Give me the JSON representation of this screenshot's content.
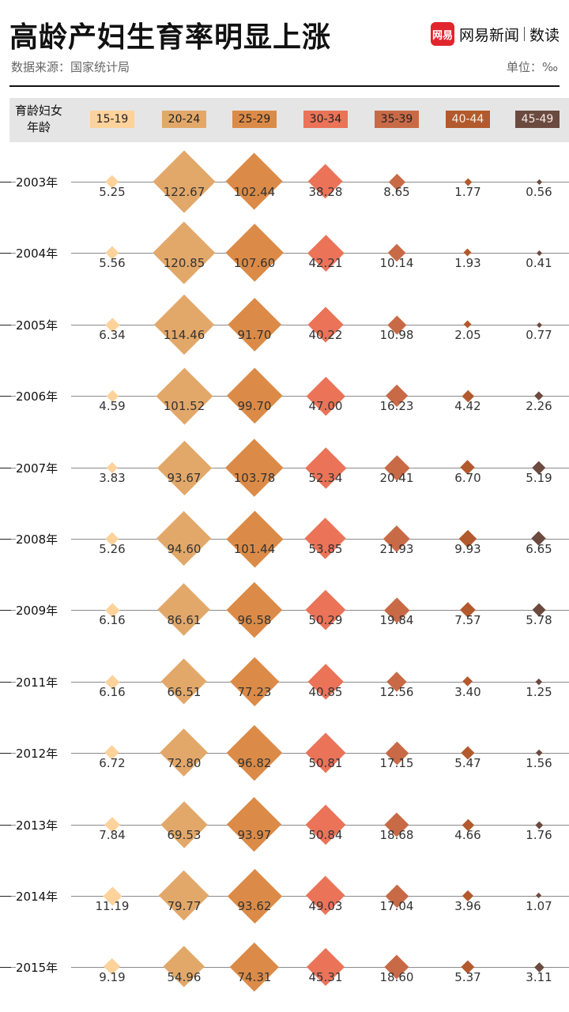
{
  "header": {
    "title": "高龄产妇生育率明显上涨",
    "source": "数据来源：国家统计局",
    "unit": "单位：‰",
    "brand_logo": "网易",
    "brand_name": "网易新闻",
    "brand_sub": "数读"
  },
  "colors": {
    "background": "#ffffff",
    "header_band": "#e5e5e5",
    "brand_red": "#e0252e"
  },
  "chart_data": {
    "type": "scatter",
    "title": "高龄产妇生育率明显上涨",
    "category_header": "育龄妇女年龄",
    "unit": "‰",
    "categories": [
      "15-19",
      "20-24",
      "25-29",
      "30-34",
      "35-39",
      "40-44",
      "45-49"
    ],
    "category_colors": [
      "#fdd29b",
      "#e2a86a",
      "#db8b47",
      "#ea7358",
      "#c96a47",
      "#b25a2d",
      "#6b4a40"
    ],
    "years": [
      "2003年",
      "2004年",
      "2005年",
      "2006年",
      "2007年",
      "2008年",
      "2009年",
      "2011年",
      "2012年",
      "2013年",
      "2014年",
      "2015年"
    ],
    "rows": [
      [
        "5.25",
        "122.67",
        "102.44",
        "38.28",
        "8.65",
        "1.77",
        "0.56"
      ],
      [
        "5.56",
        "120.85",
        "107.60",
        "42.21",
        "10.14",
        "1.93",
        "0.41"
      ],
      [
        "6.34",
        "114.46",
        "91.70",
        "40.22",
        "10.98",
        "2.05",
        "0.77"
      ],
      [
        "4.59",
        "101.52",
        "99.70",
        "47.00",
        "16.23",
        "4.42",
        "2.26"
      ],
      [
        "3.83",
        "93.67",
        "103.78",
        "52.34",
        "20.41",
        "6.70",
        "5.19"
      ],
      [
        "5.26",
        "94.60",
        "101.44",
        "53.85",
        "21.93",
        "9.93",
        "6.65"
      ],
      [
        "6.16",
        "86.61",
        "96.58",
        "50.29",
        "19.84",
        "7.57",
        "5.78"
      ],
      [
        "6.16",
        "66.51",
        "77.23",
        "40.85",
        "12.56",
        "3.40",
        "1.25"
      ],
      [
        "6.72",
        "72.80",
        "96.82",
        "50.81",
        "17.15",
        "5.47",
        "1.56"
      ],
      [
        "7.84",
        "69.53",
        "93.97",
        "50.84",
        "18.68",
        "4.66",
        "1.76"
      ],
      [
        "11.19",
        "79.77",
        "93.62",
        "49.03",
        "17.04",
        "3.96",
        "1.07"
      ],
      [
        "9.19",
        "54.96",
        "74.31",
        "45.31",
        "18.60",
        "5.37",
        "3.11"
      ]
    ]
  }
}
